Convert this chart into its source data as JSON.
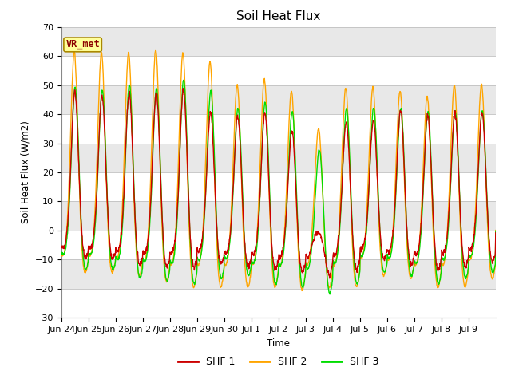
{
  "title": "Soil Heat Flux",
  "ylabel": "Soil Heat Flux (W/m2)",
  "xlabel": "Time",
  "ylim": [
    -30,
    70
  ],
  "plot_bg_color": "#e8e8e8",
  "fig_bg_color": "#ffffff",
  "shf1_color": "#cc0000",
  "shf2_color": "#ffa500",
  "shf3_color": "#00dd00",
  "annotation_text": "VR_met",
  "annotation_bg": "#ffff99",
  "annotation_border": "#aa8800",
  "x_tick_labels": [
    "Jun 24",
    "Jun 25",
    "Jun 26",
    "Jun 27",
    "Jun 28",
    "Jun 29",
    "Jun 30",
    "Jul 1",
    "Jul 2",
    "Jul 3",
    "Jul 4",
    "Jul 5",
    "Jul 6",
    "Jul 7",
    "Jul 8",
    "Jul 9"
  ],
  "legend_labels": [
    "SHF 1",
    "SHF 2",
    "SHF 3"
  ],
  "n_days": 16
}
